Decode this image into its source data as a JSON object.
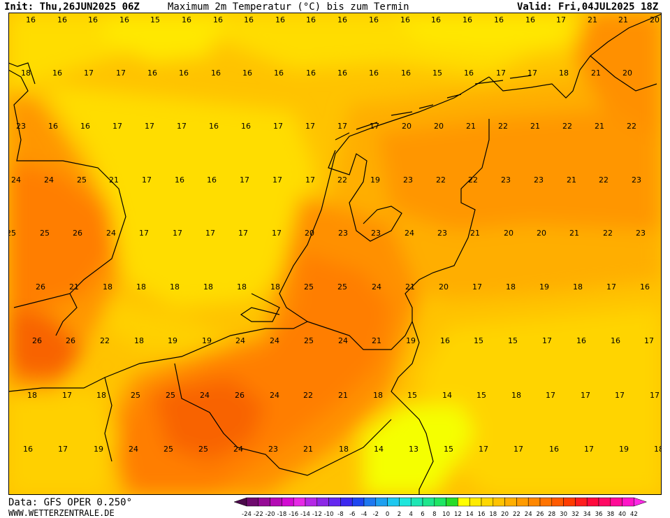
{
  "header": {
    "init": "Init: Thu,26JUN2025 06Z",
    "title": "Maximum 2m Temperatur (°C) bis zum Termin",
    "valid": "Valid: Fri,04JUL2025 18Z"
  },
  "footer": {
    "data_source": "Data: GFS OPER 0.250°",
    "website": "WWW.WETTERZENTRALE.DE"
  },
  "legend": {
    "ticks": [
      "-24",
      "-22",
      "-20",
      "-18",
      "-16",
      "-14",
      "-12",
      "-10",
      "-8",
      "-6",
      "-4",
      "-2",
      "0",
      "2",
      "4",
      "6",
      "8",
      "10",
      "12",
      "14",
      "16",
      "18",
      "20",
      "22",
      "24",
      "26",
      "28",
      "30",
      "32",
      "34",
      "36",
      "38",
      "40",
      "42"
    ],
    "colors": [
      "#4b0a4b",
      "#6e0a6e",
      "#960a96",
      "#b40ab4",
      "#d20ad2",
      "#e628e6",
      "#b428e6",
      "#8c28e6",
      "#6428f0",
      "#3c28f0",
      "#1e46f0",
      "#1e78f0",
      "#1ea0f0",
      "#1ec8f0",
      "#1ee6dc",
      "#1ee6b4",
      "#1ee68c",
      "#1ee664",
      "#28dc28",
      "#ffff00",
      "#ffeb00",
      "#ffd700",
      "#ffc300",
      "#ffaf00",
      "#ff9b00",
      "#ff8700",
      "#ff7300",
      "#ff5a00",
      "#ff3c00",
      "#ff1e1e",
      "#ff0a3c",
      "#ff0a64",
      "#ff0a96",
      "#ff14c8",
      "#ff28e6"
    ]
  },
  "colors": {
    "t14": "#f5ff00",
    "t16": "#ffdd00",
    "t18": "#ffc300",
    "t20": "#ffae00",
    "t22": "#ff9600",
    "t24": "#ff7e00",
    "t26": "#f86400"
  },
  "values": [
    {
      "rows": [
        {
          "y": 28,
          "items": [
            [
              "16",
              44
            ],
            [
              "16",
              89
            ],
            [
              "16",
              133
            ],
            [
              "16",
              178
            ],
            [
              "15",
              222
            ],
            [
              "16",
              267
            ],
            [
              "16",
              312
            ],
            [
              "16",
              356
            ],
            [
              "16",
              401
            ],
            [
              "16",
              445
            ],
            [
              "16",
              490
            ],
            [
              "16",
              535
            ],
            [
              "16",
              580
            ],
            [
              "16",
              624
            ],
            [
              "16",
              669
            ],
            [
              "16",
              714
            ],
            [
              "16",
              759
            ],
            [
              "17",
              803
            ],
            [
              "21",
              848
            ],
            [
              "21",
              892
            ],
            [
              "20",
              937
            ]
          ]
        },
        {
          "y": 104,
          "items": [
            [
              "18",
              37
            ],
            [
              "16",
              82
            ],
            [
              "17",
              127
            ],
            [
              "17",
              173
            ],
            [
              "16",
              218
            ],
            [
              "16",
              263
            ],
            [
              "16",
              309
            ],
            [
              "16",
              354
            ],
            [
              "16",
              399
            ],
            [
              "16",
              445
            ],
            [
              "16",
              490
            ],
            [
              "16",
              535
            ],
            [
              "16",
              581
            ],
            [
              "15",
              626
            ],
            [
              "16",
              671
            ],
            [
              "17",
              717
            ],
            [
              "17",
              762
            ],
            [
              "18",
              807
            ],
            [
              "21",
              853
            ],
            [
              "20",
              898
            ]
          ]
        },
        {
          "y": 180,
          "items": [
            [
              "23",
              30
            ],
            [
              "16",
              76
            ],
            [
              "16",
              122
            ],
            [
              "17",
              168
            ],
            [
              "17",
              214
            ],
            [
              "17",
              260
            ],
            [
              "16",
              306
            ],
            [
              "16",
              352
            ],
            [
              "17",
              398
            ],
            [
              "17",
              444
            ],
            [
              "17",
              490
            ],
            [
              "17",
              536
            ],
            [
              "20",
              582
            ],
            [
              "20",
              628
            ],
            [
              "21",
              674
            ],
            [
              "22",
              720
            ],
            [
              "21",
              766
            ],
            [
              "22",
              812
            ],
            [
              "21",
              858
            ],
            [
              "22",
              904
            ]
          ]
        },
        {
          "y": 257,
          "items": [
            [
              "24",
              23
            ],
            [
              "24",
              70
            ],
            [
              "25",
              117
            ],
            [
              "21",
              163
            ],
            [
              "17",
              210
            ],
            [
              "16",
              257
            ],
            [
              "16",
              303
            ],
            [
              "17",
              350
            ],
            [
              "17",
              397
            ],
            [
              "17",
              444
            ],
            [
              "22",
              490
            ],
            [
              "19",
              537
            ],
            [
              "23",
              584
            ],
            [
              "22",
              631
            ],
            [
              "22",
              677
            ],
            [
              "23",
              724
            ],
            [
              "23",
              771
            ],
            [
              "21",
              818
            ],
            [
              "22",
              864
            ],
            [
              "23",
              911
            ]
          ]
        },
        {
          "y": 333,
          "items": [
            [
              "25",
              16
            ],
            [
              "25",
              64
            ],
            [
              "26",
              111
            ],
            [
              "24",
              159
            ],
            [
              "17",
              206
            ],
            [
              "17",
              254
            ],
            [
              "17",
              301
            ],
            [
              "17",
              348
            ],
            [
              "17",
              396
            ],
            [
              "20",
              443
            ],
            [
              "23",
              491
            ],
            [
              "23",
              538
            ],
            [
              "24",
              586
            ],
            [
              "23",
              633
            ],
            [
              "21",
              680
            ],
            [
              "20",
              728
            ],
            [
              "20",
              775
            ],
            [
              "21",
              822
            ],
            [
              "22",
              870
            ],
            [
              "23",
              917
            ]
          ]
        },
        {
          "y": 410,
          "items": [
            [
              "26",
              58
            ],
            [
              "21",
              106
            ],
            [
              "18",
              154
            ],
            [
              "18",
              202
            ],
            [
              "18",
              250
            ],
            [
              "18",
              298
            ],
            [
              "18",
              346
            ],
            [
              "18",
              394
            ],
            [
              "25",
              442
            ],
            [
              "25",
              490
            ],
            [
              "24",
              539
            ],
            [
              "21",
              587
            ],
            [
              "20",
              635
            ],
            [
              "17",
              683
            ],
            [
              "18",
              731
            ],
            [
              "19",
              779
            ],
            [
              "18",
              827
            ],
            [
              "17",
              875
            ],
            [
              "16",
              923
            ]
          ]
        },
        {
          "y": 487,
          "items": [
            [
              "26",
              53
            ],
            [
              "26",
              101
            ],
            [
              "22",
              150
            ],
            [
              "18",
              199
            ],
            [
              "19",
              247
            ],
            [
              "19",
              296
            ],
            [
              "24",
              344
            ],
            [
              "24",
              393
            ],
            [
              "25",
              442
            ],
            [
              "24",
              491
            ],
            [
              "21",
              539
            ],
            [
              "19",
              588
            ],
            [
              "16",
              637
            ],
            [
              "15",
              685
            ],
            [
              "15",
              734
            ],
            [
              "17",
              783
            ],
            [
              "16",
              832
            ],
            [
              "16",
              881
            ],
            [
              "17",
              929
            ]
          ]
        },
        {
          "y": 565,
          "items": [
            [
              "18",
              46
            ],
            [
              "17",
              96
            ],
            [
              "18",
              145
            ],
            [
              "25",
              194
            ],
            [
              "25",
              244
            ],
            [
              "24",
              293
            ],
            [
              "26",
              343
            ],
            [
              "24",
              393
            ],
            [
              "22",
              441
            ],
            [
              "21",
              491
            ],
            [
              "18",
              541
            ],
            [
              "15",
              590
            ],
            [
              "14",
              640
            ],
            [
              "15",
              689
            ],
            [
              "18",
              739
            ],
            [
              "17",
              788
            ],
            [
              "17",
              838
            ],
            [
              "17",
              887
            ],
            [
              "17",
              937
            ]
          ]
        },
        {
          "y": 642,
          "items": [
            [
              "16",
              40
            ],
            [
              "17",
              90
            ],
            [
              "19",
              141
            ],
            [
              "24",
              191
            ],
            [
              "25",
              241
            ],
            [
              "25",
              291
            ],
            [
              "24",
              341
            ],
            [
              "23",
              391
            ],
            [
              "21",
              441
            ],
            [
              "18",
              492
            ],
            [
              "14",
              542
            ],
            [
              "13",
              592
            ],
            [
              "15",
              642
            ],
            [
              "17",
              692
            ],
            [
              "17",
              742
            ],
            [
              "16",
              793
            ],
            [
              "17",
              843
            ],
            [
              "19",
              893
            ],
            [
              "18",
              943
            ]
          ]
        }
      ]
    }
  ]
}
